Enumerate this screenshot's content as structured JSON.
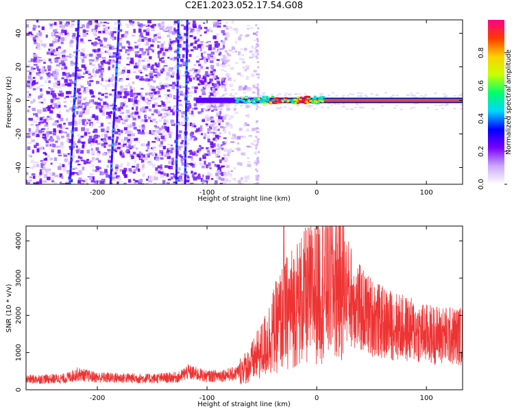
{
  "title": "C2E1.2023.052.17.54.G08",
  "chart_data": [
    {
      "type": "heatmap",
      "xlabel": "Height of straight line (km)",
      "ylabel": "Frequency (Hz)",
      "xlim": [
        -265,
        133
      ],
      "ylim": [
        -50,
        48
      ],
      "xticks": [
        -200,
        -100,
        0,
        100
      ],
      "yticks": [
        -40,
        -20,
        0,
        20,
        40
      ],
      "colorbar": {
        "label": "Normalized spectral amplitude",
        "range": [
          0,
          1
        ],
        "ticks": [
          "0.0",
          "0.2",
          "0.4",
          "0.6",
          "0.8"
        ],
        "colors": [
          "#ffffff",
          "#c9a8ff",
          "#7a00ff",
          "#0000ff",
          "#00d6ff",
          "#00ff6a",
          "#c8ff00",
          "#ffd000",
          "#ff3a00",
          "#ff0088"
        ]
      },
      "features": {
        "noise_extent_km": [
          -265,
          -70
        ],
        "streaks_km_at_top": [
          -217,
          -180,
          -126,
          -118
        ],
        "streaks_km_at_bottom": [
          -225,
          -188,
          -128,
          -120
        ],
        "signal_band_start_km": -110,
        "signal_peak_km": [
          -45,
          -5
        ],
        "signal_frequency_hz": 0
      }
    },
    {
      "type": "line",
      "color": "#ee3333",
      "xlabel": "Height of straight line (km)",
      "ylabel": "SNR (10 * v/v)",
      "xlim": [
        -265,
        133
      ],
      "ylim": [
        0,
        4400
      ],
      "xticks": [
        -200,
        -100,
        0,
        100
      ],
      "yticks": [
        0,
        1000,
        2000,
        3000,
        4000
      ],
      "envelope": {
        "x": [
          -265,
          -230,
          -218,
          -200,
          -150,
          -125,
          -118,
          -100,
          -75,
          -62,
          -50,
          -40,
          -30,
          -20,
          -10,
          0,
          10,
          20,
          25,
          40,
          60,
          80,
          100,
          120,
          133
        ],
        "y": [
          280,
          300,
          420,
          330,
          300,
          340,
          480,
          360,
          420,
          650,
          1050,
          1550,
          2000,
          2300,
          2500,
          2700,
          2900,
          2900,
          2800,
          2150,
          1800,
          1650,
          1500,
          1450,
          1450
        ]
      },
      "peak": {
        "x": -30,
        "y": 4400
      }
    }
  ]
}
